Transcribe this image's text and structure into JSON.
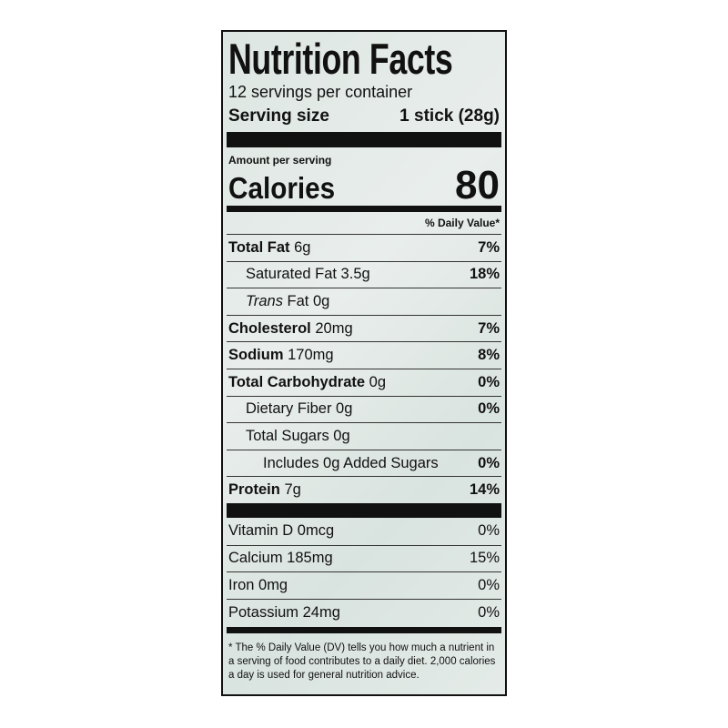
{
  "label": {
    "title": "Nutrition Facts",
    "servings": "12 servings per container",
    "serving_size_label": "Serving size",
    "serving_size_value": "1 stick (28g)",
    "amount_per_serving": "Amount per serving",
    "calories_label": "Calories",
    "calories_value": "80",
    "dv_header": "% Daily Value*",
    "nutrients": [
      {
        "name": "Total Fat",
        "amount": "6g",
        "dv": "7%"
      },
      {
        "name": "Saturated Fat 3.5g",
        "dv": "18%"
      },
      {
        "italic_prefix": "Trans",
        "name": "Fat 0g"
      },
      {
        "name": "Cholesterol",
        "amount": "20mg",
        "dv": "7%"
      },
      {
        "name": "Sodium",
        "amount": "170mg",
        "dv": "8%"
      },
      {
        "name": "Total Carbohydrate",
        "amount": "0g",
        "dv": "0%"
      },
      {
        "name": "Dietary Fiber 0g",
        "dv": "0%"
      },
      {
        "name": "Total Sugars 0g"
      },
      {
        "name": "Includes 0g Added Sugars",
        "dv": "0%"
      },
      {
        "name": "Protein",
        "amount": "7g",
        "dv": "14%"
      }
    ],
    "vitamins": [
      {
        "name": "Vitamin D 0mcg",
        "dv": "0%"
      },
      {
        "name": "Calcium 185mg",
        "dv": "15%"
      },
      {
        "name": "Iron 0mg",
        "dv": "0%"
      },
      {
        "name": "Potassium 24mg",
        "dv": "0%"
      }
    ],
    "footnote": "* The % Daily Value (DV) tells you how much a nutrient in a serving of food contributes to a daily diet. 2,000 calories a day is used for general nutrition advice."
  }
}
